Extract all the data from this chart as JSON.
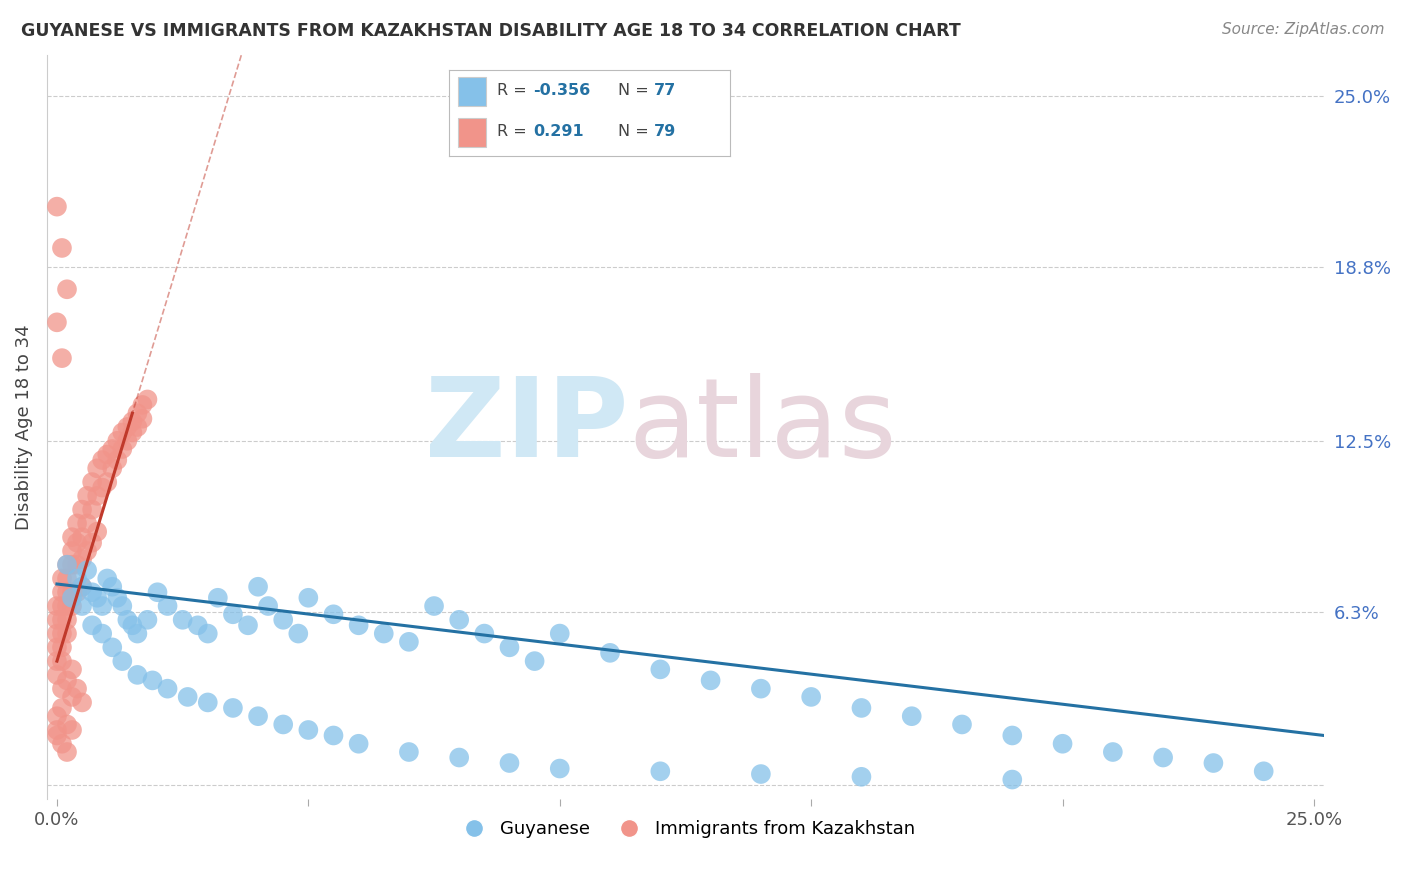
{
  "title": "GUYANESE VS IMMIGRANTS FROM KAZAKHSTAN DISABILITY AGE 18 TO 34 CORRELATION CHART",
  "source": "Source: ZipAtlas.com",
  "ylabel": "Disability Age 18 to 34",
  "xlim": [
    -0.002,
    0.252
  ],
  "ylim": [
    -0.005,
    0.265
  ],
  "xtick_positions": [
    0.0,
    0.05,
    0.1,
    0.15,
    0.2,
    0.25
  ],
  "xtick_labels": [
    "0.0%",
    "",
    "",
    "",
    "",
    "25.0%"
  ],
  "ytick_vals_right": [
    0.0,
    0.063,
    0.125,
    0.188,
    0.25
  ],
  "ytick_labels_right": [
    "",
    "6.3%",
    "12.5%",
    "18.8%",
    "25.0%"
  ],
  "color_blue": "#85c1e9",
  "color_pink": "#f1948a",
  "color_line_blue": "#2471a3",
  "color_line_pink": "#c0392b",
  "watermark_zip_color": "#d0e8f5",
  "watermark_atlas_color": "#e8d5dc",
  "blue_r": "-0.356",
  "blue_n": "77",
  "pink_r": "0.291",
  "pink_n": "79",
  "blue_x": [
    0.002,
    0.004,
    0.005,
    0.006,
    0.007,
    0.008,
    0.009,
    0.01,
    0.011,
    0.012,
    0.013,
    0.014,
    0.015,
    0.016,
    0.018,
    0.02,
    0.022,
    0.025,
    0.028,
    0.03,
    0.032,
    0.035,
    0.038,
    0.04,
    0.042,
    0.045,
    0.048,
    0.05,
    0.055,
    0.06,
    0.065,
    0.07,
    0.075,
    0.08,
    0.085,
    0.09,
    0.095,
    0.1,
    0.11,
    0.12,
    0.13,
    0.14,
    0.15,
    0.16,
    0.17,
    0.18,
    0.19,
    0.2,
    0.21,
    0.22,
    0.23,
    0.24,
    0.003,
    0.005,
    0.007,
    0.009,
    0.011,
    0.013,
    0.016,
    0.019,
    0.022,
    0.026,
    0.03,
    0.035,
    0.04,
    0.045,
    0.05,
    0.055,
    0.06,
    0.07,
    0.08,
    0.09,
    0.1,
    0.12,
    0.14,
    0.16,
    0.19
  ],
  "blue_y": [
    0.08,
    0.075,
    0.072,
    0.078,
    0.07,
    0.068,
    0.065,
    0.075,
    0.072,
    0.068,
    0.065,
    0.06,
    0.058,
    0.055,
    0.06,
    0.07,
    0.065,
    0.06,
    0.058,
    0.055,
    0.068,
    0.062,
    0.058,
    0.072,
    0.065,
    0.06,
    0.055,
    0.068,
    0.062,
    0.058,
    0.055,
    0.052,
    0.065,
    0.06,
    0.055,
    0.05,
    0.045,
    0.055,
    0.048,
    0.042,
    0.038,
    0.035,
    0.032,
    0.028,
    0.025,
    0.022,
    0.018,
    0.015,
    0.012,
    0.01,
    0.008,
    0.005,
    0.068,
    0.065,
    0.058,
    0.055,
    0.05,
    0.045,
    0.04,
    0.038,
    0.035,
    0.032,
    0.03,
    0.028,
    0.025,
    0.022,
    0.02,
    0.018,
    0.015,
    0.012,
    0.01,
    0.008,
    0.006,
    0.005,
    0.004,
    0.003,
    0.002
  ],
  "pink_x": [
    0.0,
    0.0,
    0.0,
    0.0,
    0.0,
    0.0,
    0.001,
    0.001,
    0.001,
    0.001,
    0.001,
    0.001,
    0.001,
    0.002,
    0.002,
    0.002,
    0.002,
    0.002,
    0.002,
    0.003,
    0.003,
    0.003,
    0.003,
    0.003,
    0.004,
    0.004,
    0.004,
    0.004,
    0.005,
    0.005,
    0.005,
    0.005,
    0.006,
    0.006,
    0.006,
    0.007,
    0.007,
    0.007,
    0.008,
    0.008,
    0.008,
    0.009,
    0.009,
    0.01,
    0.01,
    0.011,
    0.011,
    0.012,
    0.012,
    0.013,
    0.013,
    0.014,
    0.014,
    0.015,
    0.015,
    0.016,
    0.016,
    0.017,
    0.017,
    0.018,
    0.001,
    0.002,
    0.003,
    0.003,
    0.004,
    0.005,
    0.0,
    0.001,
    0.002,
    0.003,
    0.0,
    0.001,
    0.002,
    0.0,
    0.001,
    0.002,
    0.0,
    0.001,
    0.0
  ],
  "pink_y": [
    0.065,
    0.06,
    0.055,
    0.05,
    0.045,
    0.04,
    0.075,
    0.07,
    0.065,
    0.06,
    0.055,
    0.05,
    0.045,
    0.08,
    0.075,
    0.07,
    0.065,
    0.06,
    0.055,
    0.09,
    0.085,
    0.08,
    0.07,
    0.065,
    0.095,
    0.088,
    0.08,
    0.07,
    0.1,
    0.09,
    0.082,
    0.072,
    0.105,
    0.095,
    0.085,
    0.11,
    0.1,
    0.088,
    0.115,
    0.105,
    0.092,
    0.118,
    0.108,
    0.12,
    0.11,
    0.122,
    0.115,
    0.125,
    0.118,
    0.128,
    0.122,
    0.13,
    0.125,
    0.132,
    0.128,
    0.135,
    0.13,
    0.138,
    0.133,
    0.14,
    0.035,
    0.038,
    0.032,
    0.042,
    0.035,
    0.03,
    0.025,
    0.028,
    0.022,
    0.02,
    0.018,
    0.015,
    0.012,
    0.21,
    0.195,
    0.18,
    0.168,
    0.155,
    0.02
  ]
}
